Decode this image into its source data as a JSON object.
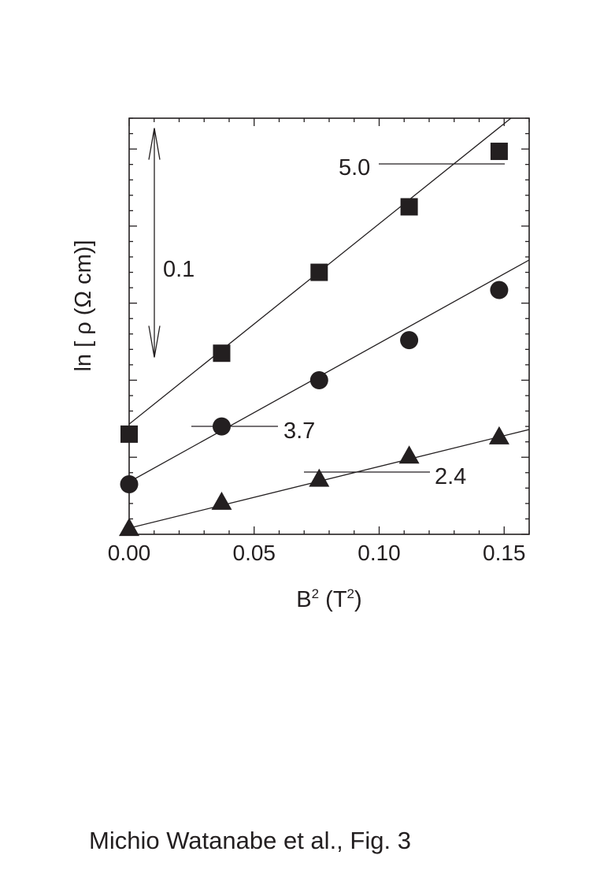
{
  "chart_data": {
    "type": "scatter",
    "xlabel": "B",
    "xlabel_sup": "2",
    "xlabel_unit_open": " (T",
    "xlabel_unit_sup": "2",
    "xlabel_unit_close": ")",
    "ylabel": "ln [ ρ (Ω cm)]",
    "xlim": [
      0.0,
      0.16
    ],
    "ylim": [
      0.0,
      0.54
    ],
    "xticks": [
      0.0,
      0.05,
      0.1,
      0.15
    ],
    "xtick_labels": [
      "0.00",
      "0.05",
      "0.10",
      "0.15"
    ],
    "x_minor_step": 0.01,
    "y_major_step": 0.1,
    "y_minor_step": 0.02,
    "y_tick_labels_shown": false,
    "scale_bar": {
      "label": "0.1",
      "length": 0.1,
      "from": 0.335,
      "to": 0.435
    },
    "series": [
      {
        "name": "5.0",
        "marker": "square",
        "x": [
          0.0,
          0.037,
          0.076,
          0.112,
          0.148
        ],
        "y": [
          0.13,
          0.235,
          0.34,
          0.425,
          0.497
        ],
        "fit": {
          "slope": 2.6,
          "intercept": 0.143
        },
        "label_at": {
          "x": 0.138,
          "y": 0.48
        }
      },
      {
        "name": "3.7",
        "marker": "circle",
        "x": [
          0.0,
          0.037,
          0.076,
          0.112,
          0.148
        ],
        "y": [
          0.065,
          0.14,
          0.2,
          0.252,
          0.317
        ],
        "fit": {
          "slope": 1.8,
          "intercept": 0.068
        },
        "label_at": {
          "x": 0.036,
          "y": 0.14
        }
      },
      {
        "name": "2.4",
        "marker": "triangle",
        "x": [
          0.0,
          0.037,
          0.076,
          0.112,
          0.148
        ],
        "y": [
          0.008,
          0.042,
          0.072,
          0.102,
          0.127
        ],
        "fit": {
          "slope": 0.8,
          "intercept": 0.008
        },
        "label_at": {
          "x": 0.1,
          "y": 0.08
        }
      }
    ],
    "grid": false,
    "legend": "inline labels"
  },
  "caption": "Michio Watanabe et al., Fig. 3"
}
